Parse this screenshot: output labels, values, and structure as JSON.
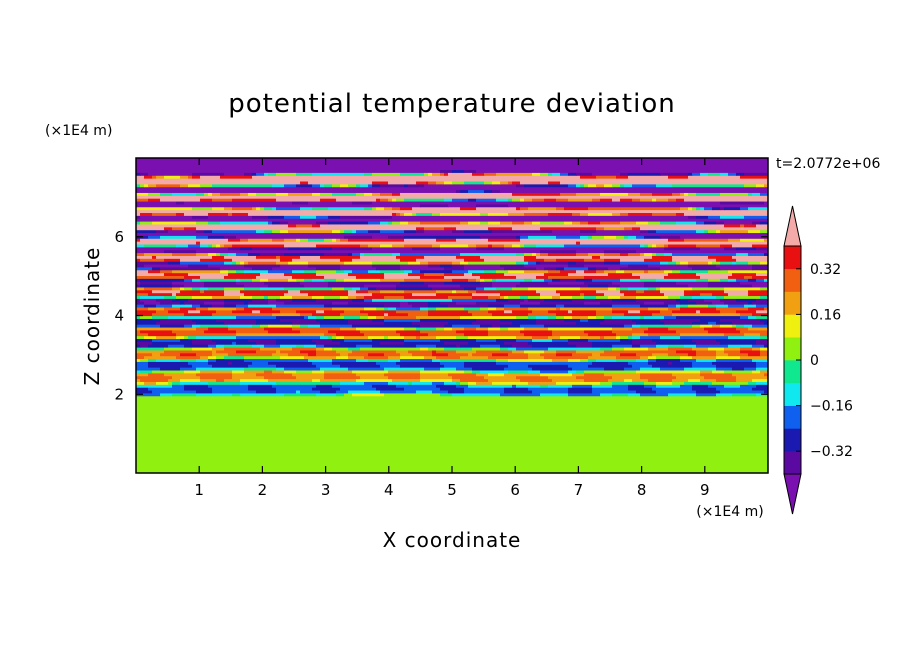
{
  "chart_data": {
    "type": "heatmap",
    "title": "potential temperature deviation",
    "xlabel": "X coordinate",
    "ylabel": "Z coordinate",
    "x_unit": "(×1E4 m)",
    "y_unit": "(×1E4 m)",
    "time_label": "t=2.0772e+06",
    "xlim": [
      0,
      10
    ],
    "ylim": [
      0,
      8
    ],
    "xticks": [
      "1",
      "2",
      "3",
      "4",
      "5",
      "6",
      "7",
      "8",
      "9"
    ],
    "yticks": [
      "2",
      "4",
      "6"
    ],
    "colorbar": {
      "tick_labels": [
        "0.32",
        "0.16",
        "0",
        "−0.16",
        "−0.32"
      ],
      "levels": [
        -0.4,
        -0.32,
        -0.24,
        -0.16,
        -0.08,
        0,
        0.08,
        0.16,
        0.24,
        0.32,
        0.4
      ],
      "colors": [
        "#5a0aa0",
        "#1a1ab0",
        "#1060f0",
        "#10e8f0",
        "#10e890",
        "#90f010",
        "#f0f010",
        "#f0a010",
        "#f06010",
        "#e81010"
      ],
      "under_color": "#7a10b0",
      "over_color": "#f4aaa8"
    },
    "regions": [
      {
        "z_range": [
          0,
          2
        ],
        "description_values": [
          0,
          0.04
        ]
      },
      {
        "z_range": [
          2,
          5
        ],
        "description_values": [
          -0.4,
          0.4
        ]
      },
      {
        "z_range": [
          5,
          8
        ],
        "description_values": [
          -0.45,
          0.45
        ]
      }
    ]
  }
}
